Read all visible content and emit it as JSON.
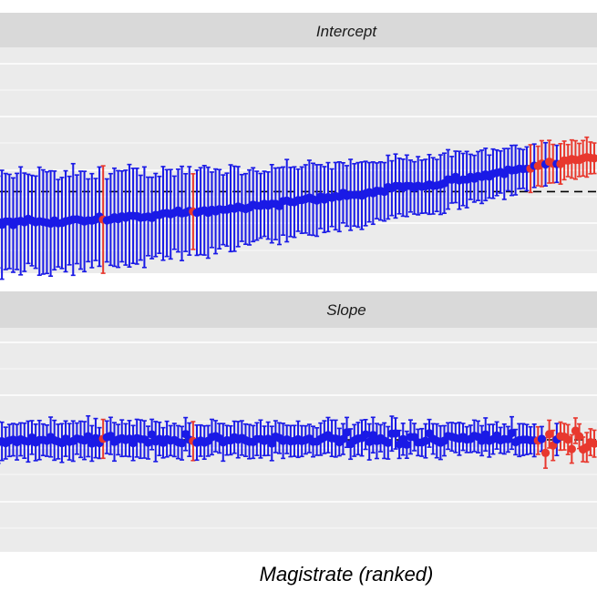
{
  "chart_data": {
    "type": "scatter",
    "xlabel": "Magistrate (ranked)",
    "colors": {
      "normal": "#1a1ae6",
      "flagged": "#e8382e",
      "reference": "#000000",
      "panel_bg": "#ebebeb",
      "strip_bg": "#d9d9d9",
      "grid": "#ffffff"
    },
    "n_points": 160,
    "panels": [
      {
        "strip": "Intercept",
        "ylim": [
          -2.6,
          4.6
        ],
        "reference_line": 0,
        "trend": {
          "start": -1.0,
          "end": 1.1,
          "curvature": 1.6
        },
        "ci_halfwidth": {
          "start": 1.7,
          "end": 0.55
        },
        "noise": 0.06,
        "flagged_indices": [
          28,
          52,
          150,
          151,
          152,
          153,
          154,
          155,
          156,
          157,
          158,
          159
        ],
        "flagged_tail_from": 140
      },
      {
        "strip": "Slope",
        "ylim": [
          -3.6,
          3.6
        ],
        "reference_line": 0,
        "trend": {
          "start": 0.0,
          "end": 0.0,
          "curvature": 1.0
        },
        "ci_halfwidth": {
          "start": 0.6,
          "end": 0.45
        },
        "noise": 0.12,
        "flagged_indices": [
          28,
          52,
          150,
          151,
          152,
          153,
          154,
          155,
          156,
          157,
          158,
          159
        ],
        "flagged_tail_from": 140
      }
    ]
  }
}
